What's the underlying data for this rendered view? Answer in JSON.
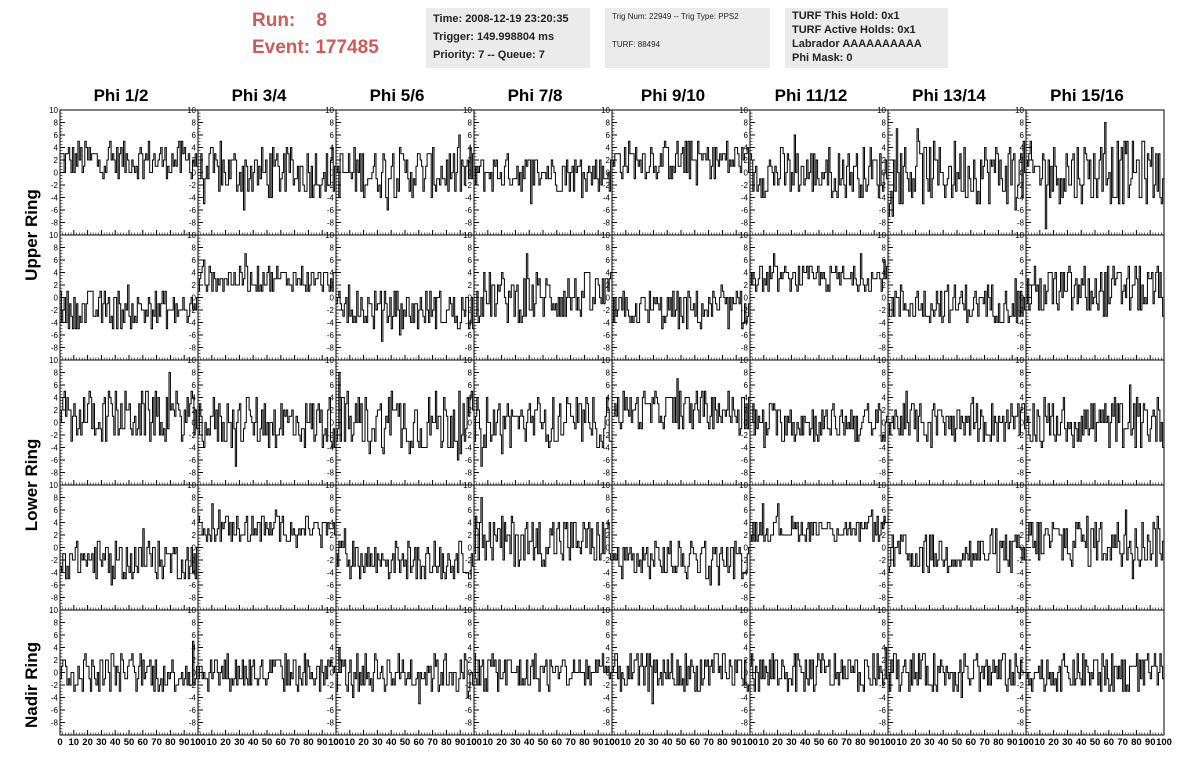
{
  "header": {
    "run_label": "Run:",
    "run_value": "8",
    "event_label": "Event:",
    "event_value": "177485",
    "time": "Time: 2008-12-19 23:20:35",
    "trigger": "Trigger: 149.998804 ms",
    "priority": "Priority: 7 -- Queue: 7",
    "trig_num": "Trig Num: 22949 -- Trig Type: PPS2",
    "turf": "TURF: 88494",
    "turf_this_hold": "TURF This Hold: 0x1",
    "turf_active_holds": "TURF Active Holds: 0x1",
    "labrador": "Labrador AAAAAAAAAA",
    "phi_mask": "Phi Mask: 0"
  },
  "columns": [
    "Phi 1/2",
    "Phi 3/4",
    "Phi 5/6",
    "Phi 7/8",
    "Phi 9/10",
    "Phi 11/12",
    "Phi 13/14",
    "Phi 15/16"
  ],
  "rows": [
    "Upper Ring",
    "Upper Ring",
    "Lower Ring",
    "Lower Ring",
    "Nadir Ring"
  ],
  "row_titles": [
    {
      "text": "Upper Ring"
    },
    {
      "text": "Lower Ring"
    },
    {
      "text": "Nadir Ring"
    }
  ],
  "chart_data": {
    "type": "line",
    "description_grid": "5 rows x 8 columns of waveform panels",
    "xlim": [
      0,
      100
    ],
    "ylim": [
      -10,
      10
    ],
    "x_ticks": [
      "0",
      "10",
      "20",
      "30",
      "40",
      "50",
      "60",
      "70",
      "80",
      "90",
      "100"
    ],
    "y_ticks": [
      "-8",
      "-6",
      "-4",
      "-2",
      "0",
      "2",
      "4",
      "6",
      "8",
      "10"
    ],
    "samples_per_trace": 100,
    "panel_offsets": [
      [
        2,
        0,
        0,
        0,
        2,
        0,
        0,
        0
      ],
      [
        -2,
        3,
        -2,
        0,
        -2,
        3,
        -1,
        1
      ],
      [
        1,
        0,
        0,
        0,
        2,
        0,
        0,
        0
      ],
      [
        -2,
        3,
        -2,
        1,
        -2,
        3,
        -1,
        1
      ],
      [
        0,
        0,
        0,
        0,
        0,
        0,
        0,
        0
      ]
    ],
    "panel_amplitude": [
      [
        3,
        4,
        4,
        3,
        3,
        4,
        5,
        5
      ],
      [
        3,
        2,
        3,
        4,
        3,
        2,
        3,
        4
      ],
      [
        4,
        4,
        5,
        4,
        3,
        3,
        3,
        4
      ],
      [
        3,
        2,
        3,
        4,
        3,
        2,
        3,
        4
      ],
      [
        3,
        3,
        3,
        3,
        3,
        3,
        3,
        3
      ]
    ]
  }
}
